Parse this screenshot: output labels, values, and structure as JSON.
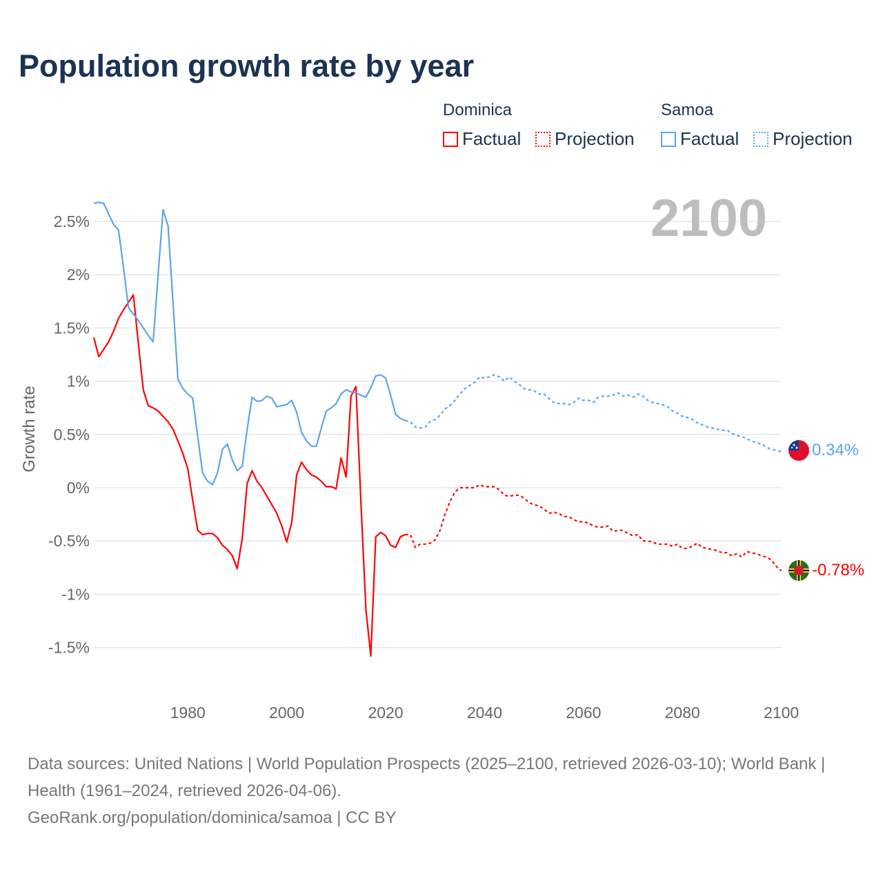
{
  "title": "Population growth rate by year",
  "legend": {
    "groups": [
      {
        "name": "Dominica",
        "color": "#ff0000",
        "factual_label": "Factual",
        "projection_label": "Projection"
      },
      {
        "name": "Samoa",
        "color": "#5aa5ea",
        "factual_label": "Factual",
        "projection_label": "Projection"
      }
    ]
  },
  "year_watermark": "2100",
  "end_labels": {
    "samoa": "0.34%",
    "dominica": "-0.78%"
  },
  "source": {
    "line1": "Data sources: United Nations | World Population Prospects (2025–2100, retrieved 2026-03-10); World Bank | Health (1961–2024, retrieved 2026-04-06).",
    "line2": "GeoRank.org/population/dominica/samoa | CC BY"
  },
  "chart_data": {
    "type": "line",
    "title": "Population growth rate by year",
    "xlabel": "",
    "ylabel": "Growth rate",
    "xlim": [
      1961,
      2100
    ],
    "ylim": [
      -1.8,
      2.75
    ],
    "xticks": [
      1980,
      2000,
      2020,
      2040,
      2060,
      2080,
      2100
    ],
    "xtick_labels": [
      "1980",
      "2000",
      "2020",
      "2040",
      "2060",
      "2080",
      "2100"
    ],
    "yticks": [
      2.5,
      2,
      1.5,
      1,
      0.5,
      0,
      -0.5,
      -1,
      -1.5
    ],
    "ytick_labels": [
      "2.5%",
      "2%",
      "1.5%",
      "1%",
      "0.5%",
      "0%",
      "-0.5%",
      "-1%",
      "-1.5%"
    ],
    "grid": true,
    "legend_position": "top-right",
    "series": [
      {
        "name": "Dominica",
        "kind": "Factual",
        "color": "#ff0000",
        "x_start": 1961,
        "values": [
          1.41,
          1.23,
          1.3,
          1.37,
          1.47,
          1.59,
          1.67,
          1.74,
          1.81,
          1.36,
          0.92,
          0.77,
          0.75,
          0.72,
          0.67,
          0.62,
          0.55,
          0.44,
          0.32,
          0.18,
          -0.12,
          -0.4,
          -0.44,
          -0.43,
          -0.43,
          -0.47,
          -0.54,
          -0.58,
          -0.64,
          -0.76,
          -0.48,
          0.04,
          0.16,
          0.06,
          0.0,
          -0.08,
          -0.16,
          -0.24,
          -0.36,
          -0.51,
          -0.33,
          0.12,
          0.24,
          0.17,
          0.12,
          0.1,
          0.06,
          0.01,
          0.01,
          -0.01,
          0.28,
          0.1,
          0.86,
          0.95,
          -0.14,
          -1.14,
          -1.58,
          -0.46,
          -0.42,
          -0.45,
          -0.54,
          -0.56,
          -0.46,
          -0.44
        ]
      },
      {
        "name": "Dominica",
        "kind": "Projection",
        "color": "#ff0000",
        "x_start": 2024,
        "values": [
          -0.44,
          -0.44,
          -0.56,
          -0.53,
          -0.53,
          -0.52,
          -0.49,
          -0.4,
          -0.25,
          -0.13,
          -0.04,
          0.0,
          0.0,
          0.0,
          0.0,
          0.03,
          0.01,
          0.01,
          0.01,
          -0.02,
          -0.07,
          -0.08,
          -0.07,
          -0.07,
          -0.1,
          -0.14,
          -0.16,
          -0.17,
          -0.2,
          -0.24,
          -0.23,
          -0.24,
          -0.27,
          -0.27,
          -0.3,
          -0.32,
          -0.32,
          -0.33,
          -0.36,
          -0.37,
          -0.37,
          -0.36,
          -0.41,
          -0.4,
          -0.4,
          -0.43,
          -0.45,
          -0.44,
          -0.5,
          -0.5,
          -0.51,
          -0.53,
          -0.53,
          -0.53,
          -0.55,
          -0.53,
          -0.57,
          -0.57,
          -0.55,
          -0.52,
          -0.56,
          -0.57,
          -0.58,
          -0.59,
          -0.61,
          -0.61,
          -0.64,
          -0.62,
          -0.65,
          -0.6,
          -0.61,
          -0.62,
          -0.64,
          -0.65,
          -0.68,
          -0.74,
          -0.78
        ]
      },
      {
        "name": "Samoa",
        "kind": "Factual",
        "color": "#5aa5ea",
        "x_start": 1961,
        "values": [
          2.67,
          2.68,
          2.67,
          2.57,
          2.47,
          2.42,
          2.07,
          1.69,
          1.63,
          1.57,
          1.5,
          1.43,
          1.37,
          2.0,
          2.61,
          2.46,
          1.75,
          1.02,
          0.93,
          0.88,
          0.84,
          0.48,
          0.14,
          0.06,
          0.03,
          0.14,
          0.36,
          0.41,
          0.26,
          0.16,
          0.2,
          0.55,
          0.85,
          0.81,
          0.82,
          0.86,
          0.84,
          0.76,
          0.77,
          0.78,
          0.82,
          0.71,
          0.52,
          0.44,
          0.39,
          0.39,
          0.56,
          0.72,
          0.75,
          0.79,
          0.88,
          0.92,
          0.9,
          0.89,
          0.87,
          0.85,
          0.94,
          1.05,
          1.06,
          1.03,
          0.87,
          0.69,
          0.65,
          0.63
        ]
      },
      {
        "name": "Samoa",
        "kind": "Projection",
        "color": "#5aa5ea",
        "x_start": 2024,
        "values": [
          0.63,
          0.62,
          0.57,
          0.56,
          0.57,
          0.62,
          0.64,
          0.68,
          0.74,
          0.77,
          0.82,
          0.88,
          0.93,
          0.96,
          0.99,
          1.04,
          1.03,
          1.04,
          1.06,
          1.04,
          1.0,
          1.04,
          1.0,
          0.97,
          0.93,
          0.92,
          0.91,
          0.88,
          0.88,
          0.84,
          0.8,
          0.79,
          0.79,
          0.78,
          0.8,
          0.84,
          0.82,
          0.82,
          0.8,
          0.85,
          0.86,
          0.86,
          0.87,
          0.89,
          0.86,
          0.87,
          0.85,
          0.88,
          0.86,
          0.82,
          0.8,
          0.79,
          0.78,
          0.76,
          0.72,
          0.7,
          0.67,
          0.66,
          0.64,
          0.61,
          0.59,
          0.57,
          0.56,
          0.55,
          0.54,
          0.54,
          0.51,
          0.49,
          0.48,
          0.46,
          0.44,
          0.42,
          0.41,
          0.38,
          0.36,
          0.35,
          0.34
        ]
      }
    ]
  }
}
